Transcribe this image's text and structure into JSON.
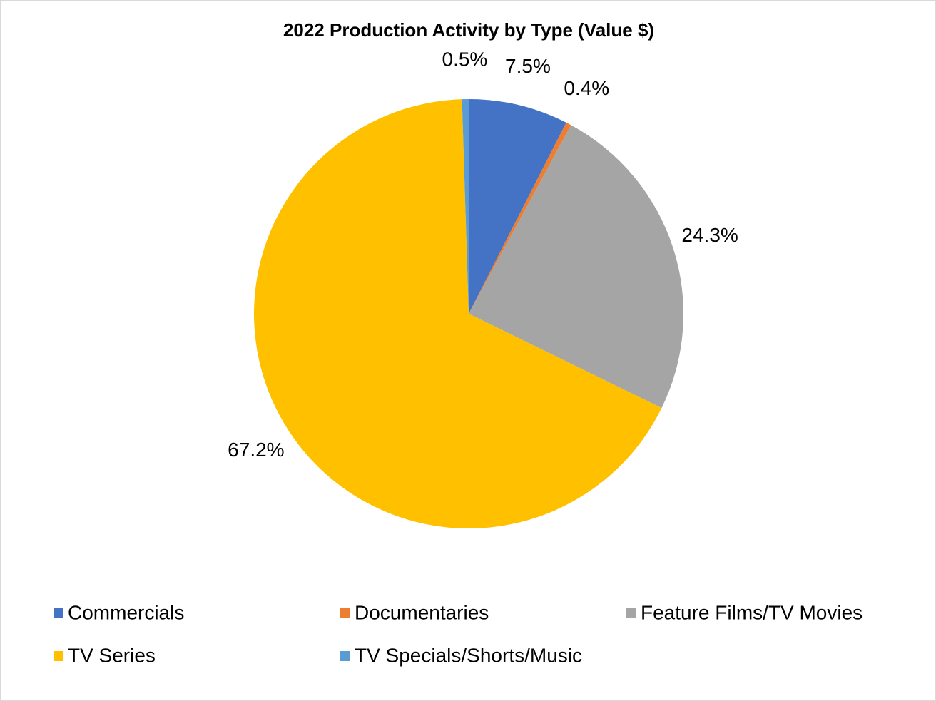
{
  "chart_data": {
    "type": "pie",
    "title": "2022 Production Activity by Type (Value $)",
    "categories": [
      "Commercials",
      "Documentaries",
      "Feature Films/TV Movies",
      "TV Series",
      "TV Specials/Shorts/Music"
    ],
    "values": [
      7.5,
      0.4,
      24.3,
      67.2,
      0.5
    ],
    "value_labels": [
      "7.5%",
      "0.4%",
      "24.3%",
      "67.2%",
      "0.5%"
    ],
    "colors": [
      "#4472c4",
      "#ed7d31",
      "#a5a5a5",
      "#ffc000",
      "#5b9bd5"
    ],
    "legend": "bottom"
  }
}
